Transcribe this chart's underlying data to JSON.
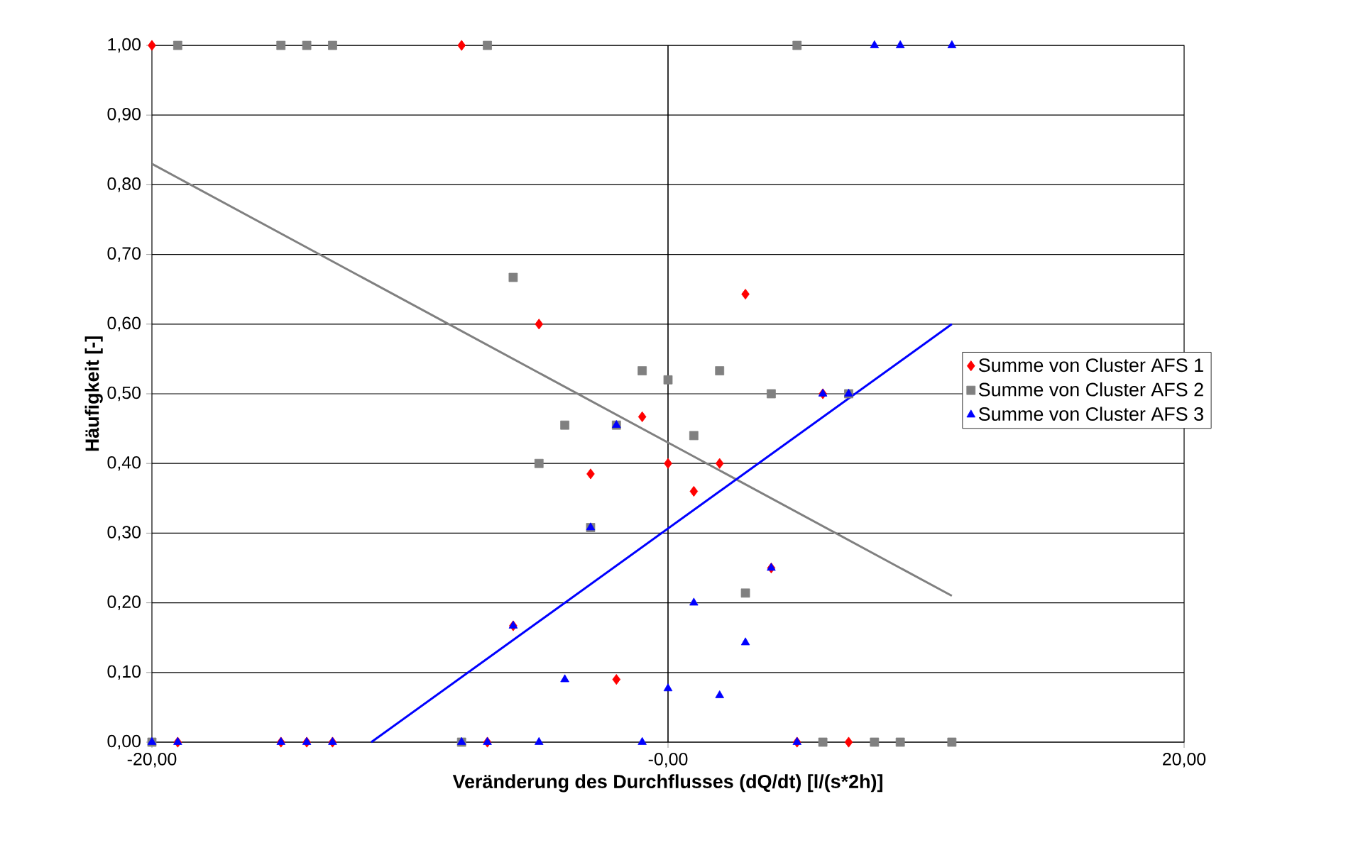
{
  "chart_data": {
    "type": "scatter",
    "xlabel": "Veränderung des Durchflusses (dQ/dt) [l/(s*2h)]",
    "ylabel": "Häufigkeit [-]",
    "xlim": [
      -20,
      20
    ],
    "ylim": [
      0,
      1
    ],
    "xticks": [
      {
        "value": -20,
        "label": "-20,00"
      },
      {
        "value": 0,
        "label": "-0,00"
      },
      {
        "value": 20,
        "label": "20,00"
      }
    ],
    "yticks": [
      {
        "value": 0,
        "label": "0,00"
      },
      {
        "value": 0.1,
        "label": "0,10"
      },
      {
        "value": 0.2,
        "label": "0,20"
      },
      {
        "value": 0.3,
        "label": "0,30"
      },
      {
        "value": 0.4,
        "label": "0,40"
      },
      {
        "value": 0.5,
        "label": "0,50"
      },
      {
        "value": 0.6,
        "label": "0,60"
      },
      {
        "value": 0.7,
        "label": "0,70"
      },
      {
        "value": 0.8,
        "label": "0,80"
      },
      {
        "value": 0.9,
        "label": "0,90"
      },
      {
        "value": 1,
        "label": "1,00"
      }
    ],
    "grid": "y",
    "legend": "right",
    "ref_lines": [
      {
        "axis": "x",
        "value": 0,
        "color": "#000000"
      }
    ],
    "series": [
      {
        "name": "Summe von Cluster AFS 1",
        "marker": "diamond",
        "color": "#ff0000",
        "x": [
          -20,
          -8,
          -6,
          -5,
          -3,
          -2,
          -1,
          0,
          1,
          2,
          3,
          4,
          6,
          -19,
          -15,
          -14,
          -13,
          -7,
          5,
          7
        ],
        "values": [
          1,
          1,
          0.167,
          0.6,
          0.385,
          0.09,
          0.467,
          0.4,
          0.36,
          0.4,
          0.643,
          0.25,
          0.5,
          0,
          0,
          0,
          0,
          0,
          0,
          0
        ]
      },
      {
        "name": "Summe von Cluster AFS 2",
        "marker": "square",
        "color": "#808080",
        "x": [
          -19,
          -15,
          -14,
          -13,
          -7,
          5,
          -6,
          -5,
          -4,
          -3,
          -2,
          -1,
          0,
          1,
          2,
          3,
          4,
          7,
          -20,
          -8,
          6,
          8,
          9,
          11
        ],
        "values": [
          1,
          1,
          1,
          1,
          1,
          1,
          0.667,
          0.4,
          0.455,
          0.308,
          0.455,
          0.533,
          0.52,
          0.44,
          0.533,
          0.214,
          0.5,
          0.5,
          0,
          0,
          0,
          0,
          0,
          0
        ]
      },
      {
        "name": "Summe von Cluster AFS 3",
        "marker": "triangle",
        "color": "#0000ff",
        "x": [
          8,
          9,
          11,
          6,
          7,
          -2,
          -3,
          4,
          1,
          -6,
          3,
          -4,
          0,
          2,
          -20,
          -19,
          -15,
          -14,
          -13,
          -8,
          -7,
          -5,
          -1,
          5
        ],
        "values": [
          1,
          1,
          1,
          0.5,
          0.5,
          0.455,
          0.308,
          0.25,
          0.2,
          0.167,
          0.143,
          0.09,
          0.077,
          0.067,
          0,
          0,
          0,
          0,
          0,
          0,
          0,
          0,
          0,
          0
        ]
      },
      {
        "type": "line",
        "color": "#808080",
        "x": [
          -20,
          11
        ],
        "values": [
          0.83,
          0.21
        ]
      },
      {
        "type": "line",
        "color": "#0000ff",
        "x": [
          -11.5,
          11
        ],
        "values": [
          0,
          0.6
        ]
      }
    ]
  }
}
